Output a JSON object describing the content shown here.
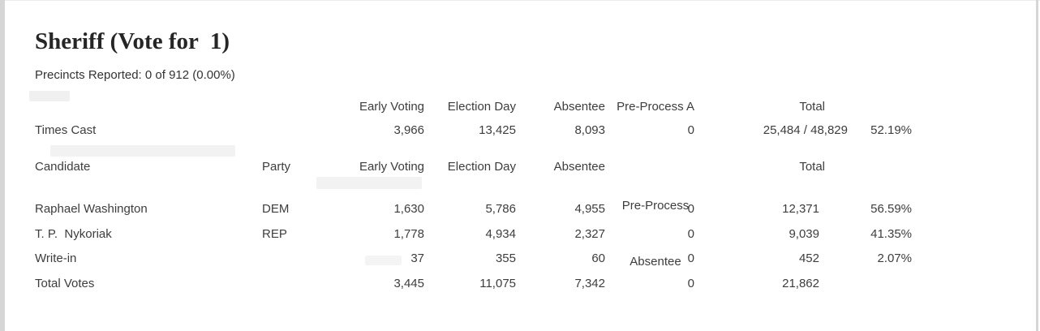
{
  "report": {
    "title": "Sheriff (Vote for  1)",
    "precincts_reported": "Precincts Reported: 0 of 912 (0.00%)"
  },
  "colors": {
    "body_text": "#3d3d3d",
    "title_text": "#262626",
    "edge_strip": "#d6d6d6",
    "background": "#ffffff"
  },
  "times_cast_section": {
    "headers": [
      "Early Voting",
      "Election Day",
      "Absentee",
      "Pre-Process A",
      "Total"
    ],
    "row_label": "Times Cast",
    "early_voting": "3,966",
    "election_day": "13,425",
    "absentee": "8,093",
    "pre_process": "0",
    "total": "25,484 / 48,829",
    "turnout_percent": "52.19%"
  },
  "results_section": {
    "headers": {
      "candidate": "Candidate",
      "party": "Party",
      "early_voting": "Early Voting",
      "election_day": "Election Day",
      "absentee": "Absentee",
      "pre_process_line1": "Pre-Process",
      "pre_process_line2": "Absentee",
      "total": "Total"
    },
    "rows": [
      {
        "candidate": "Raphael Washington",
        "party": "DEM",
        "early_voting": "1,630",
        "election_day": "5,786",
        "absentee": "4,955",
        "pre_process": "0",
        "total": "12,371",
        "percent": "56.59%"
      },
      {
        "candidate": "T. P.  Nykoriak",
        "party": "REP",
        "early_voting": "1,778",
        "election_day": "4,934",
        "absentee": "2,327",
        "pre_process": "0",
        "total": "9,039",
        "percent": "41.35%"
      },
      {
        "candidate": "Write-in",
        "party": "",
        "early_voting": "37",
        "election_day": "355",
        "absentee": "60",
        "pre_process": "0",
        "total": "452",
        "percent": "2.07%"
      },
      {
        "candidate": "Total Votes",
        "party": "",
        "early_voting": "3,445",
        "election_day": "11,075",
        "absentee": "7,342",
        "pre_process": "0",
        "total": "21,862",
        "percent": ""
      }
    ]
  }
}
